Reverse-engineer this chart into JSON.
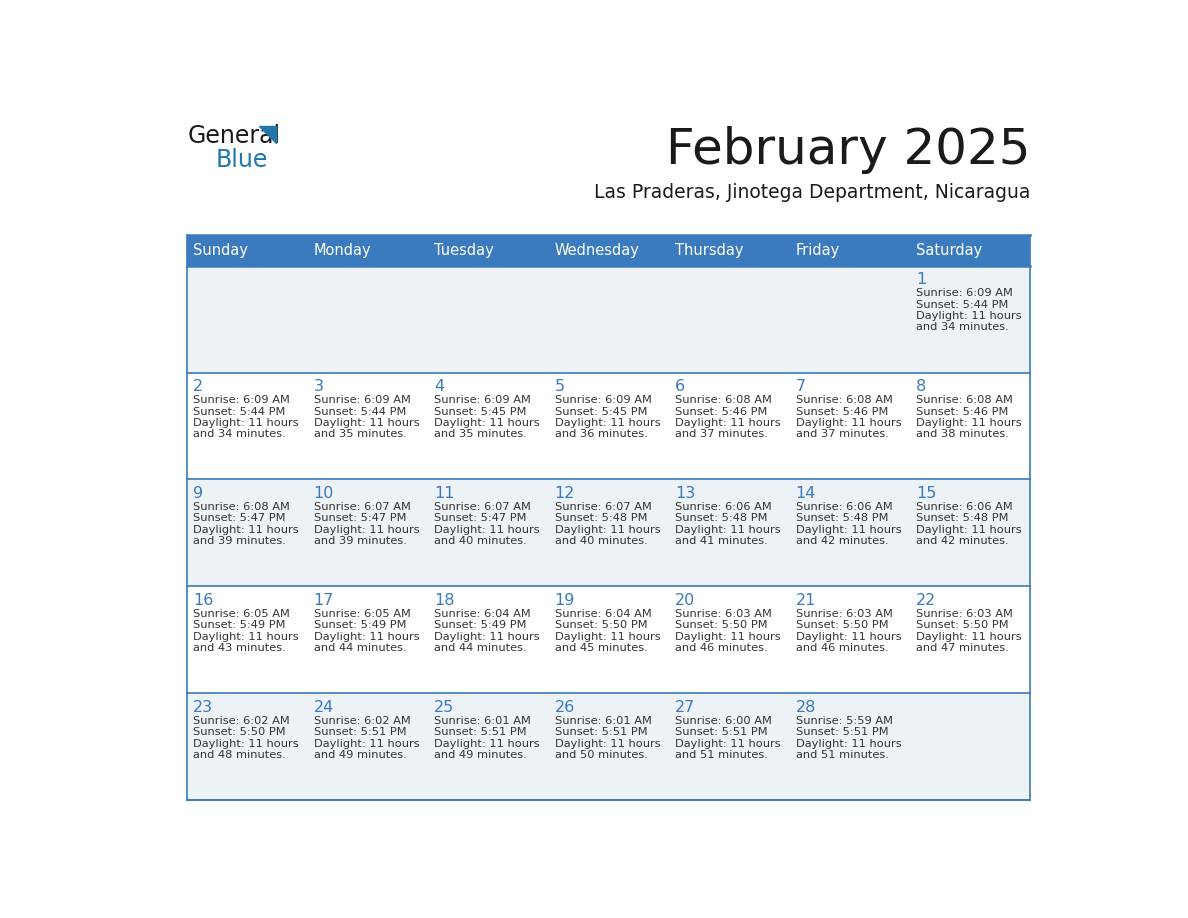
{
  "title": "February 2025",
  "subtitle": "Las Praderas, Jinotega Department, Nicaragua",
  "days_of_week": [
    "Sunday",
    "Monday",
    "Tuesday",
    "Wednesday",
    "Thursday",
    "Friday",
    "Saturday"
  ],
  "header_bg_color": "#3a7abf",
  "header_text_color": "#ffffff",
  "cell_bg_light": "#edf2f7",
  "cell_bg_white": "#ffffff",
  "row_line_color": "#3a7abf",
  "day_number_color": "#3a7abf",
  "text_color": "#333333",
  "logo_general_color": "#1a1a1a",
  "logo_blue_color": "#2176ae",
  "calendar_data": [
    {
      "day": 1,
      "col": 6,
      "row": 0,
      "sunrise": "6:09 AM",
      "sunset": "5:44 PM",
      "daylight": "11 hours and 34 minutes."
    },
    {
      "day": 2,
      "col": 0,
      "row": 1,
      "sunrise": "6:09 AM",
      "sunset": "5:44 PM",
      "daylight": "11 hours and 34 minutes."
    },
    {
      "day": 3,
      "col": 1,
      "row": 1,
      "sunrise": "6:09 AM",
      "sunset": "5:44 PM",
      "daylight": "11 hours and 35 minutes."
    },
    {
      "day": 4,
      "col": 2,
      "row": 1,
      "sunrise": "6:09 AM",
      "sunset": "5:45 PM",
      "daylight": "11 hours and 35 minutes."
    },
    {
      "day": 5,
      "col": 3,
      "row": 1,
      "sunrise": "6:09 AM",
      "sunset": "5:45 PM",
      "daylight": "11 hours and 36 minutes."
    },
    {
      "day": 6,
      "col": 4,
      "row": 1,
      "sunrise": "6:08 AM",
      "sunset": "5:46 PM",
      "daylight": "11 hours and 37 minutes."
    },
    {
      "day": 7,
      "col": 5,
      "row": 1,
      "sunrise": "6:08 AM",
      "sunset": "5:46 PM",
      "daylight": "11 hours and 37 minutes."
    },
    {
      "day": 8,
      "col": 6,
      "row": 1,
      "sunrise": "6:08 AM",
      "sunset": "5:46 PM",
      "daylight": "11 hours and 38 minutes."
    },
    {
      "day": 9,
      "col": 0,
      "row": 2,
      "sunrise": "6:08 AM",
      "sunset": "5:47 PM",
      "daylight": "11 hours and 39 minutes."
    },
    {
      "day": 10,
      "col": 1,
      "row": 2,
      "sunrise": "6:07 AM",
      "sunset": "5:47 PM",
      "daylight": "11 hours and 39 minutes."
    },
    {
      "day": 11,
      "col": 2,
      "row": 2,
      "sunrise": "6:07 AM",
      "sunset": "5:47 PM",
      "daylight": "11 hours and 40 minutes."
    },
    {
      "day": 12,
      "col": 3,
      "row": 2,
      "sunrise": "6:07 AM",
      "sunset": "5:48 PM",
      "daylight": "11 hours and 40 minutes."
    },
    {
      "day": 13,
      "col": 4,
      "row": 2,
      "sunrise": "6:06 AM",
      "sunset": "5:48 PM",
      "daylight": "11 hours and 41 minutes."
    },
    {
      "day": 14,
      "col": 5,
      "row": 2,
      "sunrise": "6:06 AM",
      "sunset": "5:48 PM",
      "daylight": "11 hours and 42 minutes."
    },
    {
      "day": 15,
      "col": 6,
      "row": 2,
      "sunrise": "6:06 AM",
      "sunset": "5:48 PM",
      "daylight": "11 hours and 42 minutes."
    },
    {
      "day": 16,
      "col": 0,
      "row": 3,
      "sunrise": "6:05 AM",
      "sunset": "5:49 PM",
      "daylight": "11 hours and 43 minutes."
    },
    {
      "day": 17,
      "col": 1,
      "row": 3,
      "sunrise": "6:05 AM",
      "sunset": "5:49 PM",
      "daylight": "11 hours and 44 minutes."
    },
    {
      "day": 18,
      "col": 2,
      "row": 3,
      "sunrise": "6:04 AM",
      "sunset": "5:49 PM",
      "daylight": "11 hours and 44 minutes."
    },
    {
      "day": 19,
      "col": 3,
      "row": 3,
      "sunrise": "6:04 AM",
      "sunset": "5:50 PM",
      "daylight": "11 hours and 45 minutes."
    },
    {
      "day": 20,
      "col": 4,
      "row": 3,
      "sunrise": "6:03 AM",
      "sunset": "5:50 PM",
      "daylight": "11 hours and 46 minutes."
    },
    {
      "day": 21,
      "col": 5,
      "row": 3,
      "sunrise": "6:03 AM",
      "sunset": "5:50 PM",
      "daylight": "11 hours and 46 minutes."
    },
    {
      "day": 22,
      "col": 6,
      "row": 3,
      "sunrise": "6:03 AM",
      "sunset": "5:50 PM",
      "daylight": "11 hours and 47 minutes."
    },
    {
      "day": 23,
      "col": 0,
      "row": 4,
      "sunrise": "6:02 AM",
      "sunset": "5:50 PM",
      "daylight": "11 hours and 48 minutes."
    },
    {
      "day": 24,
      "col": 1,
      "row": 4,
      "sunrise": "6:02 AM",
      "sunset": "5:51 PM",
      "daylight": "11 hours and 49 minutes."
    },
    {
      "day": 25,
      "col": 2,
      "row": 4,
      "sunrise": "6:01 AM",
      "sunset": "5:51 PM",
      "daylight": "11 hours and 49 minutes."
    },
    {
      "day": 26,
      "col": 3,
      "row": 4,
      "sunrise": "6:01 AM",
      "sunset": "5:51 PM",
      "daylight": "11 hours and 50 minutes."
    },
    {
      "day": 27,
      "col": 4,
      "row": 4,
      "sunrise": "6:00 AM",
      "sunset": "5:51 PM",
      "daylight": "11 hours and 51 minutes."
    },
    {
      "day": 28,
      "col": 5,
      "row": 4,
      "sunrise": "5:59 AM",
      "sunset": "5:51 PM",
      "daylight": "11 hours and 51 minutes."
    }
  ],
  "num_rows": 5,
  "num_cols": 7
}
